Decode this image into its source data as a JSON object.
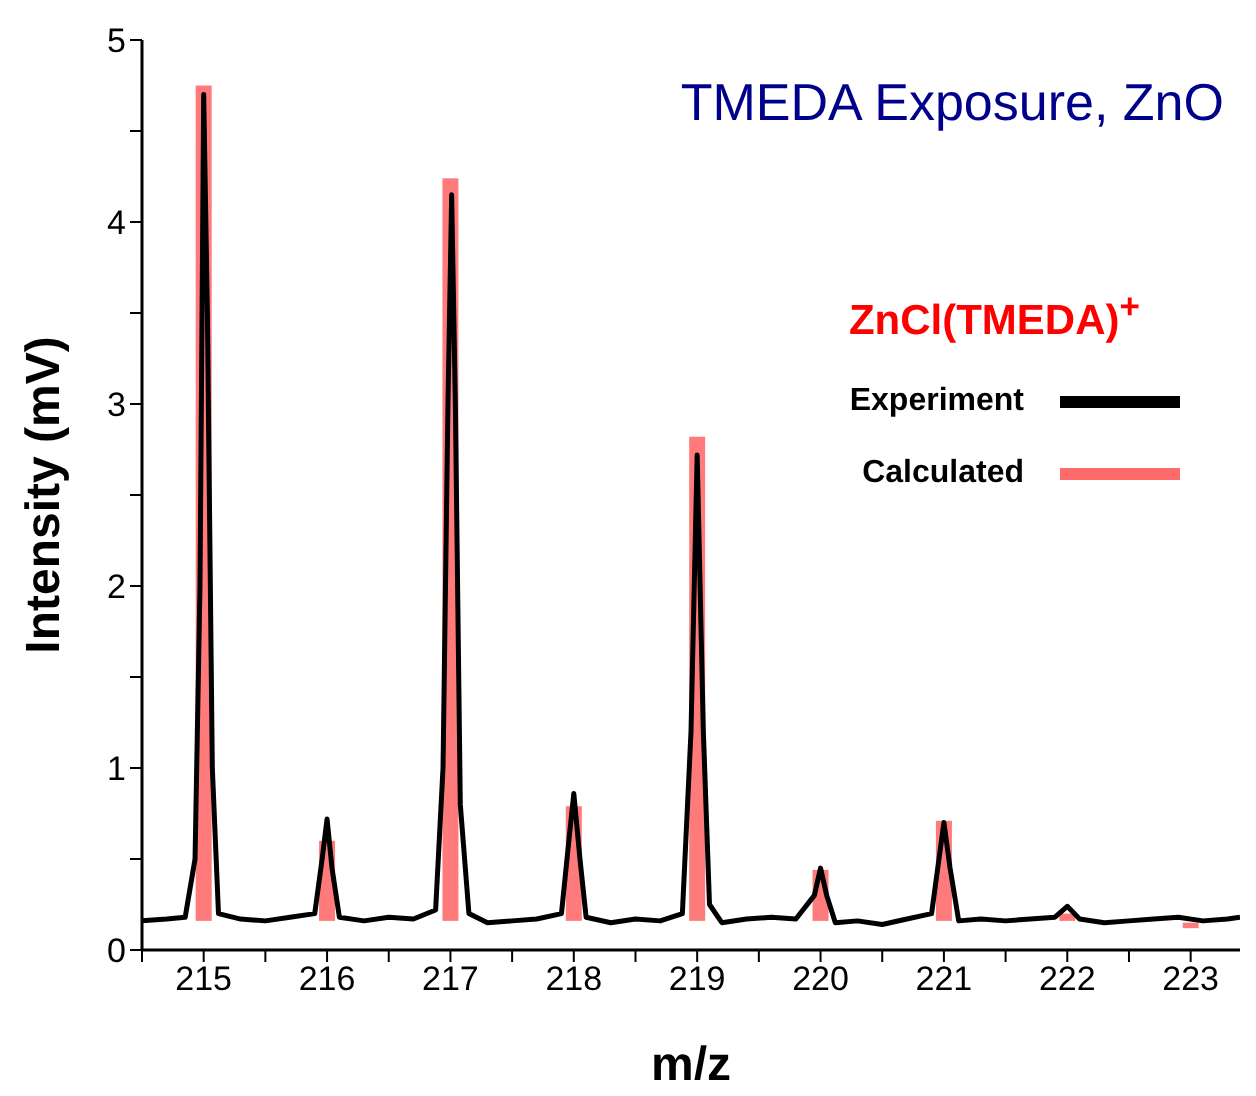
{
  "chart_data": {
    "type": "line",
    "title": "TMEDA Exposure, ZnO",
    "xlabel": "m/z",
    "ylabel": "Intensity (mV)",
    "legend_title": "ZnCl(TMEDA)$^{+}$",
    "legend": "top right",
    "grid": false,
    "marker": "none",
    "line_style": "solid",
    "xlim": [
      214.5,
      223.4
    ],
    "xticks": [
      {
        "value": 214.5,
        "label": null
      },
      215,
      {
        "value": 215.5,
        "label": null
      },
      216,
      {
        "value": 216.5,
        "label": null
      },
      217,
      {
        "value": 217.5,
        "label": null
      },
      218,
      {
        "value": 218.5,
        "label": null
      },
      219,
      {
        "value": 219.5,
        "label": null
      },
      220,
      {
        "value": 220.5,
        "label": null
      },
      221,
      {
        "value": 221.5,
        "label": null
      },
      222,
      {
        "value": 222.5,
        "label": null
      },
      223
    ],
    "ylim": [
      0,
      5
    ],
    "yticks": [
      0,
      {
        "value": 0.5,
        "label": null
      },
      1,
      {
        "value": 1.5,
        "label": null
      },
      2,
      {
        "value": 2.5,
        "label": null
      },
      3,
      {
        "value": 3.5,
        "label": null
      },
      4,
      {
        "value": 4.5,
        "label": null
      },
      5
    ],
    "series": [
      {
        "name": "Experiment",
        "color": "#000000",
        "x": [
          214.5,
          214.7,
          214.85,
          214.93,
          214.97,
          215.0,
          215.03,
          215.07,
          215.12,
          215.3,
          215.5,
          215.7,
          215.9,
          215.96,
          216.0,
          216.04,
          216.1,
          216.3,
          216.5,
          216.7,
          216.88,
          216.94,
          216.98,
          217.01,
          217.04,
          217.08,
          217.15,
          217.3,
          217.5,
          217.7,
          217.9,
          217.96,
          218.0,
          218.05,
          218.1,
          218.3,
          218.5,
          218.7,
          218.88,
          218.95,
          219.0,
          219.05,
          219.1,
          219.2,
          219.4,
          219.6,
          219.8,
          219.95,
          220.0,
          220.05,
          220.12,
          220.3,
          220.5,
          220.7,
          220.9,
          220.96,
          221.0,
          221.05,
          221.12,
          221.3,
          221.5,
          221.7,
          221.9,
          222.0,
          222.1,
          222.3,
          222.5,
          222.7,
          222.9,
          223.1,
          223.3,
          223.4
        ],
        "values": [
          0.16,
          0.17,
          0.18,
          0.5,
          2.0,
          4.7,
          3.5,
          1.0,
          0.2,
          0.17,
          0.16,
          0.18,
          0.2,
          0.5,
          0.72,
          0.45,
          0.18,
          0.16,
          0.18,
          0.17,
          0.22,
          1.0,
          3.0,
          4.15,
          3.0,
          0.8,
          0.2,
          0.15,
          0.16,
          0.17,
          0.2,
          0.6,
          0.86,
          0.5,
          0.18,
          0.15,
          0.17,
          0.16,
          0.2,
          1.2,
          2.72,
          1.2,
          0.25,
          0.15,
          0.17,
          0.18,
          0.17,
          0.3,
          0.45,
          0.3,
          0.15,
          0.16,
          0.14,
          0.17,
          0.2,
          0.5,
          0.7,
          0.45,
          0.16,
          0.17,
          0.16,
          0.17,
          0.18,
          0.24,
          0.17,
          0.15,
          0.16,
          0.17,
          0.18,
          0.16,
          0.17,
          0.18
        ]
      },
      {
        "name": "Calculated",
        "type": "bar",
        "color": "#ff5a5a",
        "x": [
          215,
          216,
          217,
          218,
          219,
          220,
          221,
          222,
          223
        ],
        "base": [
          0.16,
          0.16,
          0.16,
          0.16,
          0.16,
          0.16,
          0.16,
          0.16,
          0.12
        ],
        "values": [
          4.59,
          0.44,
          4.08,
          0.63,
          2.66,
          0.28,
          0.55,
          0.04,
          0.03
        ]
      }
    ]
  }
}
